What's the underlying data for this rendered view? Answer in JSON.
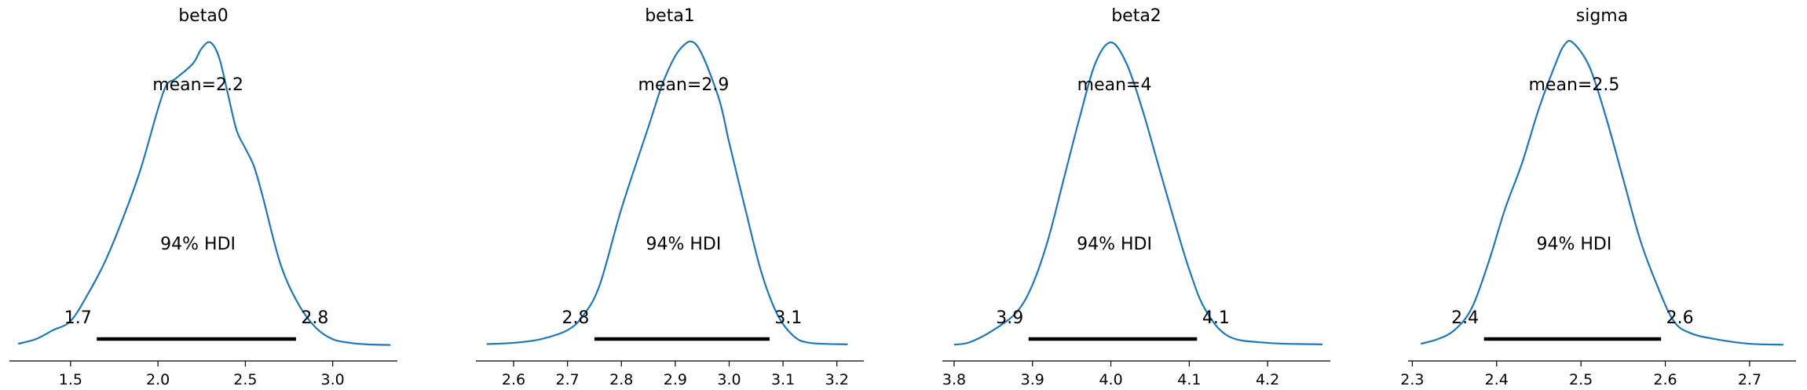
{
  "chart_data": [
    {
      "type": "line",
      "title": "beta0",
      "mean_label": "mean=2.2",
      "hdi_label": "94% HDI",
      "hdi_low_label": "1.7",
      "hdi_high_label": "2.8",
      "hdi": [
        1.65,
        2.79
      ],
      "xlim": [
        1.15,
        3.37
      ],
      "xticks": [
        1.5,
        2.0,
        2.5,
        3.0
      ],
      "xticklabels": [
        "1.5",
        "2.0",
        "2.5",
        "3.0"
      ],
      "grid": false,
      "x": [
        1.2,
        1.3,
        1.4,
        1.5,
        1.6,
        1.7,
        1.8,
        1.9,
        2.0,
        2.05,
        2.1,
        2.2,
        2.25,
        2.3,
        2.35,
        2.4,
        2.45,
        2.5,
        2.55,
        2.6,
        2.7,
        2.8,
        2.9,
        3.0,
        3.1,
        3.2,
        3.33
      ],
      "y": [
        0.005,
        0.02,
        0.05,
        0.08,
        0.17,
        0.28,
        0.42,
        0.58,
        0.78,
        0.86,
        0.88,
        0.93,
        0.98,
        1.0,
        0.95,
        0.83,
        0.71,
        0.65,
        0.59,
        0.49,
        0.27,
        0.14,
        0.06,
        0.02,
        0.008,
        0.003,
        0.001
      ]
    },
    {
      "type": "line",
      "title": "beta1",
      "mean_label": "mean=2.9",
      "hdi_label": "94% HDI",
      "hdi_low_label": "2.8",
      "hdi_high_label": "3.1",
      "hdi": [
        2.75,
        3.075
      ],
      "xlim": [
        2.53,
        3.25
      ],
      "xticks": [
        2.6,
        2.7,
        2.8,
        2.9,
        3.0,
        3.1,
        3.2
      ],
      "xticklabels": [
        "2.6",
        "2.7",
        "2.8",
        "2.9",
        "3.0",
        "3.1",
        "3.2"
      ],
      "grid": false,
      "x": [
        2.55,
        2.6,
        2.65,
        2.7,
        2.73,
        2.76,
        2.8,
        2.85,
        2.88,
        2.91,
        2.94,
        2.98,
        3.0,
        3.03,
        3.06,
        3.09,
        3.12,
        3.15,
        3.22
      ],
      "y": [
        0.004,
        0.008,
        0.02,
        0.05,
        0.1,
        0.2,
        0.45,
        0.72,
        0.88,
        0.98,
        0.99,
        0.82,
        0.67,
        0.45,
        0.24,
        0.1,
        0.03,
        0.008,
        0.003
      ]
    },
    {
      "type": "line",
      "title": "beta2",
      "mean_label": "mean=4",
      "hdi_label": "94% HDI",
      "hdi_low_label": "3.9",
      "hdi_high_label": "4.1",
      "hdi": [
        3.895,
        4.11
      ],
      "xlim": [
        3.785,
        4.28
      ],
      "xticks": [
        3.8,
        3.9,
        4.0,
        4.1,
        4.2
      ],
      "xticklabels": [
        "3.8",
        "3.9",
        "4.0",
        "4.1",
        "4.2"
      ],
      "grid": false,
      "x": [
        3.8,
        3.82,
        3.85,
        3.88,
        3.9,
        3.92,
        3.94,
        3.96,
        3.98,
        4.0,
        4.02,
        4.04,
        4.06,
        4.08,
        4.1,
        4.12,
        4.15,
        4.2,
        4.27
      ],
      "y": [
        0.002,
        0.01,
        0.05,
        0.11,
        0.2,
        0.35,
        0.55,
        0.75,
        0.93,
        1.0,
        0.93,
        0.78,
        0.6,
        0.42,
        0.25,
        0.12,
        0.03,
        0.008,
        0.003
      ]
    },
    {
      "type": "line",
      "title": "sigma",
      "mean_label": "mean=2.5",
      "hdi_label": "94% HDI",
      "hdi_low_label": "2.4",
      "hdi_high_label": "2.6",
      "hdi": [
        2.385,
        2.595
      ],
      "xlim": [
        2.295,
        2.755
      ],
      "xticks": [
        2.3,
        2.4,
        2.5,
        2.6,
        2.7
      ],
      "xticklabels": [
        "2.3",
        "2.4",
        "2.5",
        "2.6",
        "2.7"
      ],
      "grid": false,
      "x": [
        2.31,
        2.33,
        2.35,
        2.37,
        2.39,
        2.41,
        2.43,
        2.45,
        2.47,
        2.48,
        2.49,
        2.51,
        2.53,
        2.55,
        2.57,
        2.59,
        2.61,
        2.63,
        2.66,
        2.7,
        2.74
      ],
      "y": [
        0.005,
        0.02,
        0.05,
        0.12,
        0.27,
        0.45,
        0.6,
        0.78,
        0.93,
        0.99,
        1.0,
        0.92,
        0.75,
        0.55,
        0.35,
        0.2,
        0.08,
        0.04,
        0.02,
        0.005,
        0.002
      ]
    }
  ]
}
